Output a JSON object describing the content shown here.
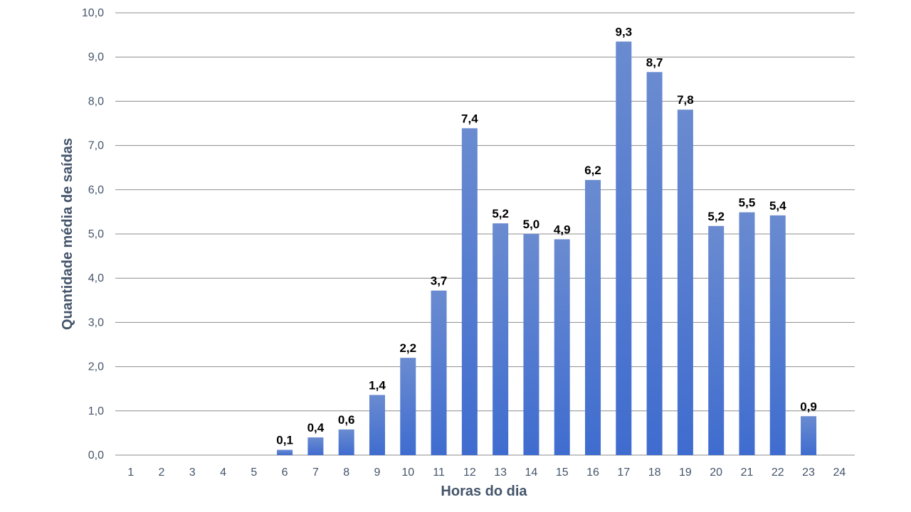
{
  "chart_data": {
    "type": "bar",
    "title": "",
    "xlabel": "Horas do dia",
    "ylabel": "Quantidade média de saídas",
    "ylim": [
      0,
      10
    ],
    "y_ticks": [
      "0,0",
      "1,0",
      "2,0",
      "3,0",
      "4,0",
      "5,0",
      "6,0",
      "7,0",
      "8,0",
      "9,0",
      "10,0"
    ],
    "categories": [
      "1",
      "2",
      "3",
      "4",
      "5",
      "6",
      "7",
      "8",
      "9",
      "10",
      "11",
      "12",
      "13",
      "14",
      "15",
      "16",
      "17",
      "18",
      "19",
      "20",
      "21",
      "22",
      "23",
      "24"
    ],
    "values": [
      0,
      0,
      0,
      0,
      0,
      0.12,
      0.4,
      0.58,
      1.36,
      2.2,
      3.72,
      7.39,
      5.24,
      5.0,
      4.88,
      6.22,
      9.35,
      8.66,
      7.81,
      5.18,
      5.49,
      5.42,
      0.88,
      0
    ],
    "data_labels": [
      "",
      "",
      "",
      "",
      "",
      "0,1",
      "0,4",
      "0,6",
      "1,4",
      "2,2",
      "3,7",
      "7,4",
      "5,2",
      "5,0",
      "4,9",
      "6,2",
      "9,3",
      "8,7",
      "7,8",
      "5,2",
      "5,5",
      "5,4",
      "0,9",
      ""
    ],
    "grid": true,
    "legend": "none"
  },
  "colors": {
    "bar_top": "#6a8bd0",
    "bar_bottom": "#3f6ccf",
    "grid": "#8c8c8c",
    "axis_text": "#44546a"
  }
}
